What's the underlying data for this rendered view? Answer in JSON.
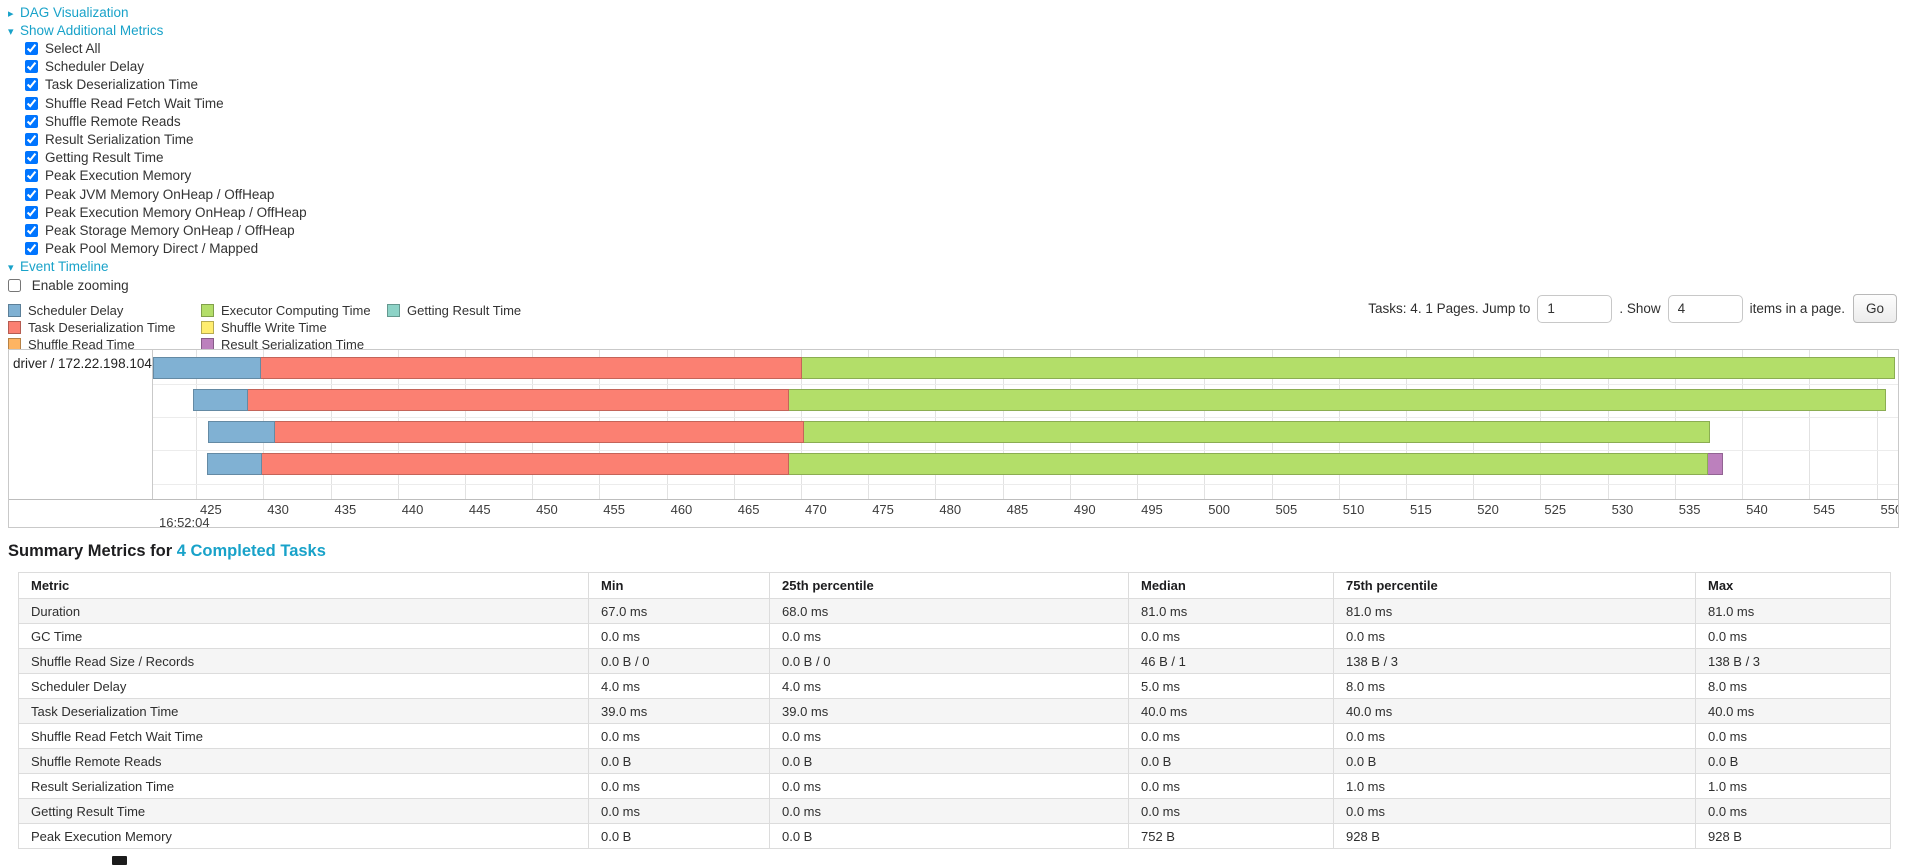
{
  "nav": {
    "dag_link": "DAG Visualization",
    "metrics_link": "Show Additional Metrics",
    "timeline_link": "Event Timeline",
    "collapsed_arrow": "▸",
    "expanded_arrow": "▾",
    "metric_checkboxes": [
      "Select All",
      "Scheduler Delay",
      "Task Deserialization Time",
      "Shuffle Read Fetch Wait Time",
      "Shuffle Remote Reads",
      "Result Serialization Time",
      "Getting Result Time",
      "Peak Execution Memory",
      "Peak JVM Memory OnHeap / OffHeap",
      "Peak Execution Memory OnHeap / OffHeap",
      "Peak Storage Memory OnHeap / OffHeap",
      "Peak Pool Memory Direct / Mapped"
    ],
    "metric_checkboxes_checked": true,
    "enable_zooming_label": "Enable zooming",
    "enable_zooming_checked": false
  },
  "pagination": {
    "tasks_text": "Tasks: 4. 1 Pages. Jump to",
    "jump_input_value": "1",
    "between_text": ". Show",
    "show_input_value": "4",
    "after_text": "items in a page.",
    "go_button": "Go"
  },
  "chart_data": {
    "type": "bar",
    "subtype": "horizontal-stacked-task-event-timeline",
    "group_label": "driver / 172.22.198.104",
    "legend_columns": [
      [
        {
          "label": "Scheduler Delay",
          "color": "#80B1D3"
        },
        {
          "label": "Task Deserialization Time",
          "color": "#FB8072"
        },
        {
          "label": "Shuffle Read Time",
          "color": "#FDB462"
        }
      ],
      [
        {
          "label": "Executor Computing Time",
          "color": "#B3DE69"
        },
        {
          "label": "Shuffle Write Time",
          "color": "#FFED6F"
        },
        {
          "label": "Result Serialization Time",
          "color": "#BC80BD"
        }
      ],
      [
        {
          "label": "Getting Result Time",
          "color": "#8DD3C7"
        }
      ]
    ],
    "x_axis": {
      "tick_start": 425,
      "tick_end": 550,
      "tick_step": 5,
      "domain_min_ms": 421.8,
      "domain_max_ms": 551.6,
      "major_time_label": "16:52:04",
      "grid": true
    },
    "tasks": [
      {
        "start_ms": 421.8,
        "segments": [
          {
            "metric": "Scheduler Delay",
            "color": "#80B1D3",
            "ms": 8.0
          },
          {
            "metric": "Task Deserialization Time",
            "color": "#FB8072",
            "ms": 40.3
          },
          {
            "metric": "Executor Computing Time",
            "color": "#B3DE69",
            "ms": 81.3
          }
        ]
      },
      {
        "start_ms": 424.8,
        "segments": [
          {
            "metric": "Scheduler Delay",
            "color": "#80B1D3",
            "ms": 4.1
          },
          {
            "metric": "Task Deserialization Time",
            "color": "#FB8072",
            "ms": 40.2
          },
          {
            "metric": "Executor Computing Time",
            "color": "#B3DE69",
            "ms": 81.6
          }
        ]
      },
      {
        "start_ms": 425.9,
        "segments": [
          {
            "metric": "Scheduler Delay",
            "color": "#80B1D3",
            "ms": 5.0
          },
          {
            "metric": "Task Deserialization Time",
            "color": "#FB8072",
            "ms": 39.3
          },
          {
            "metric": "Executor Computing Time",
            "color": "#B3DE69",
            "ms": 67.4
          }
        ]
      },
      {
        "start_ms": 425.8,
        "segments": [
          {
            "metric": "Scheduler Delay",
            "color": "#80B1D3",
            "ms": 4.1
          },
          {
            "metric": "Task Deserialization Time",
            "color": "#FB8072",
            "ms": 39.2
          },
          {
            "metric": "Executor Computing Time",
            "color": "#B3DE69",
            "ms": 68.4
          },
          {
            "metric": "Result Serialization Time",
            "color": "#BC80BD",
            "ms": 1.1
          }
        ]
      }
    ]
  },
  "summary": {
    "heading_prefix": "Summary Metrics for ",
    "heading_link": "4 Completed Tasks",
    "table": {
      "columns": [
        "Metric",
        "Min",
        "25th percentile",
        "Median",
        "75th percentile",
        "Max"
      ],
      "rows": [
        [
          "Duration",
          "67.0 ms",
          "68.0 ms",
          "81.0 ms",
          "81.0 ms",
          "81.0 ms"
        ],
        [
          "GC Time",
          "0.0 ms",
          "0.0 ms",
          "0.0 ms",
          "0.0 ms",
          "0.0 ms"
        ],
        [
          "Shuffle Read Size / Records",
          "0.0 B / 0",
          "0.0 B / 0",
          "46 B / 1",
          "138 B / 3",
          "138 B / 3"
        ],
        [
          "Scheduler Delay",
          "4.0 ms",
          "4.0 ms",
          "5.0 ms",
          "8.0 ms",
          "8.0 ms"
        ],
        [
          "Task Deserialization Time",
          "39.0 ms",
          "39.0 ms",
          "40.0 ms",
          "40.0 ms",
          "40.0 ms"
        ],
        [
          "Shuffle Read Fetch Wait Time",
          "0.0 ms",
          "0.0 ms",
          "0.0 ms",
          "0.0 ms",
          "0.0 ms"
        ],
        [
          "Shuffle Remote Reads",
          "0.0 B",
          "0.0 B",
          "0.0 B",
          "0.0 B",
          "0.0 B"
        ],
        [
          "Result Serialization Time",
          "0.0 ms",
          "0.0 ms",
          "0.0 ms",
          "1.0 ms",
          "1.0 ms"
        ],
        [
          "Getting Result Time",
          "0.0 ms",
          "0.0 ms",
          "0.0 ms",
          "0.0 ms",
          "0.0 ms"
        ],
        [
          "Peak Execution Memory",
          "0.0 B",
          "0.0 B",
          "752 B",
          "928 B",
          "928 B"
        ]
      ]
    }
  },
  "colors": {
    "link": "#18a2c9",
    "stripe": "#f5f5f5",
    "grid": "#e2e2e2"
  }
}
